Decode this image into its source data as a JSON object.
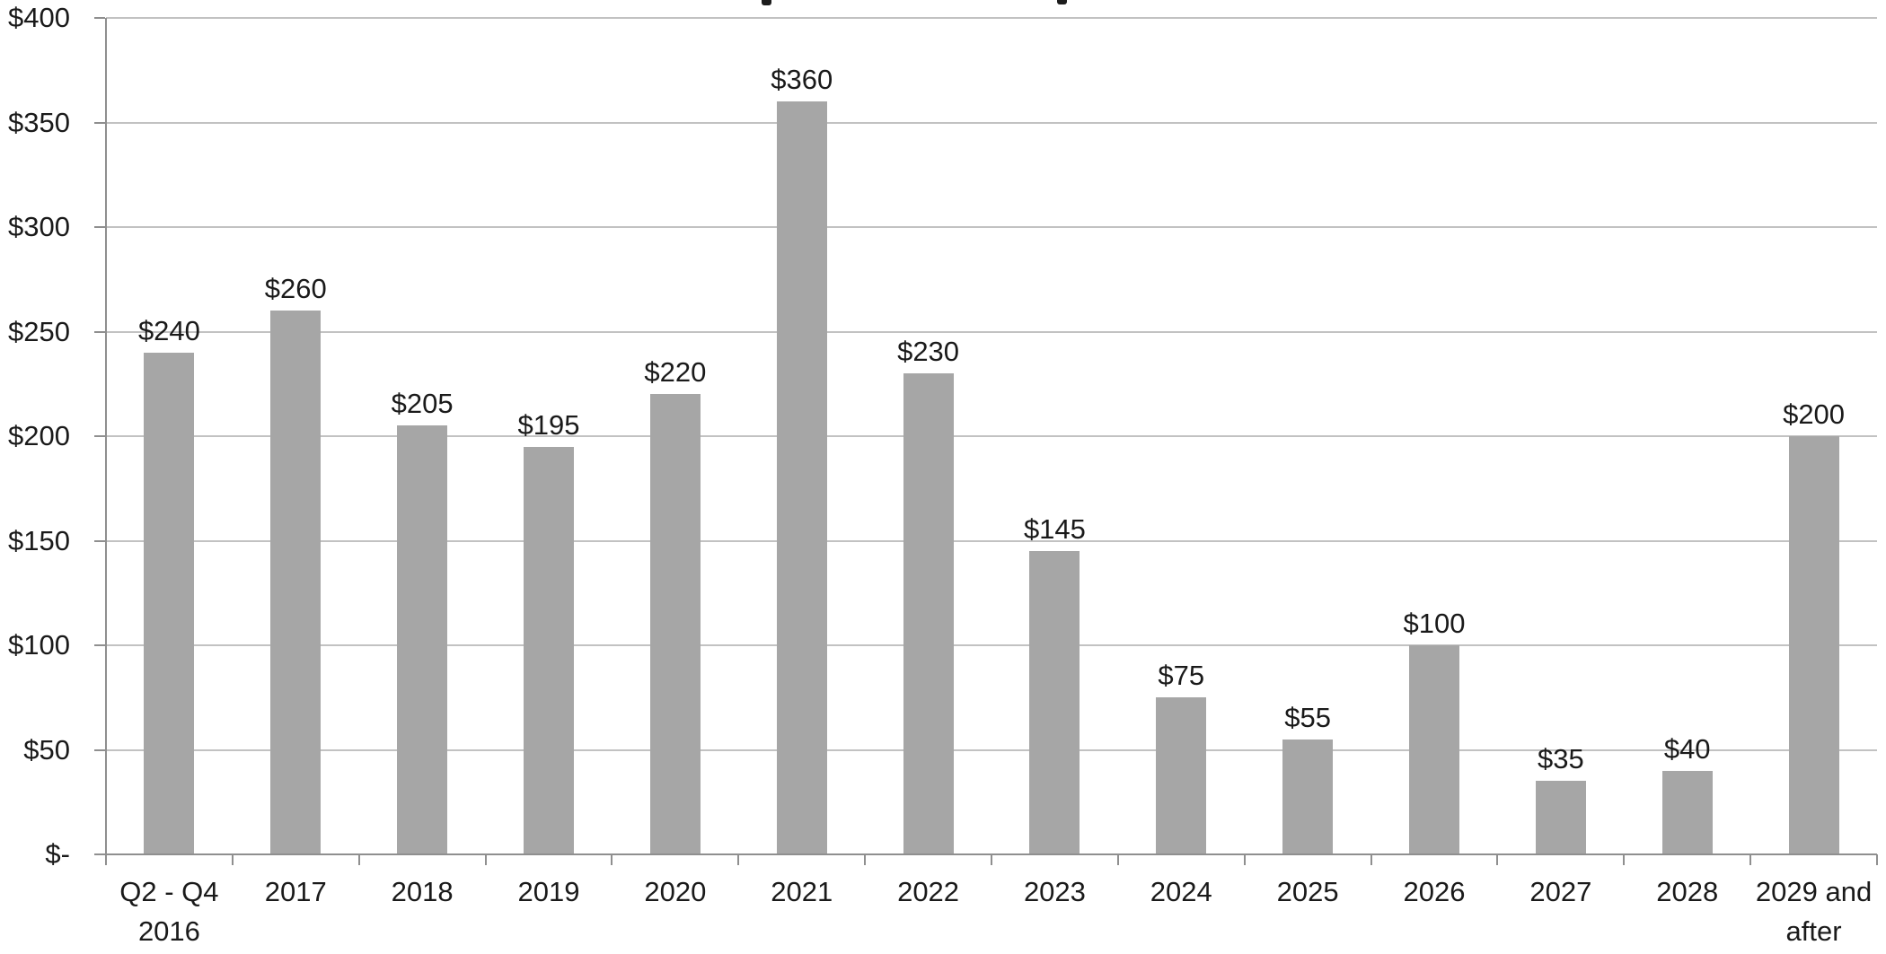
{
  "chart_data": {
    "type": "bar",
    "title": "",
    "title_cropped_out_of_frame": true,
    "legend": "none",
    "grid": true,
    "categories": [
      "Q2 - Q4\n2016",
      "2017",
      "2018",
      "2019",
      "2020",
      "2021",
      "2022",
      "2023",
      "2024",
      "2025",
      "2026",
      "2027",
      "2028",
      "2029 and\nafter"
    ],
    "values": [
      240,
      260,
      205,
      195,
      220,
      360,
      230,
      145,
      75,
      55,
      100,
      35,
      40,
      200
    ],
    "bar_labels": [
      "$240",
      "$260",
      "$205",
      "$195",
      "$220",
      "$360",
      "$230",
      "$145",
      "$75",
      "$55",
      "$100",
      "$35",
      "$40",
      "$200"
    ],
    "y_axis": {
      "lim": [
        0,
        400
      ],
      "ticks": [
        {
          "value": 400,
          "label": "$400"
        },
        {
          "value": 350,
          "label": "$350"
        },
        {
          "value": 300,
          "label": "$300"
        },
        {
          "value": 250,
          "label": "$250"
        },
        {
          "value": 200,
          "label": "$200"
        },
        {
          "value": 150,
          "label": "$150"
        },
        {
          "value": 100,
          "label": "$100"
        },
        {
          "value": 50,
          "label": "$50"
        },
        {
          "value": 0,
          "label": "$-"
        }
      ]
    },
    "colors": {
      "bar": "#a6a6a6",
      "gridline": "#c2c2c2",
      "axis": "#8f8f8f",
      "text": "#1a1a1a",
      "background": "#ffffff"
    }
  }
}
